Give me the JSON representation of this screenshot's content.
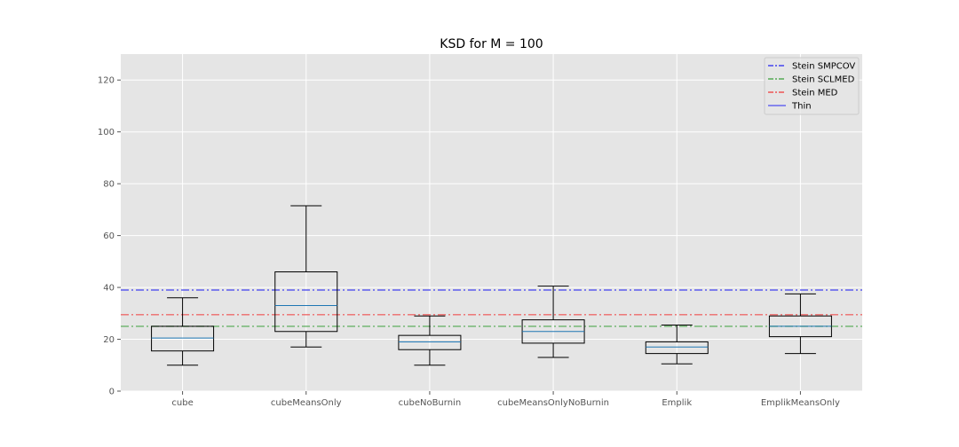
{
  "chart_data": {
    "type": "box",
    "title": "KSD for M = 100",
    "xlabel": "",
    "ylabel": "",
    "ylim": [
      0,
      130
    ],
    "yticks": [
      0,
      20,
      40,
      60,
      80,
      100,
      120
    ],
    "grid": true,
    "legend_position": "top-right",
    "categories": [
      "cube",
      "cubeMeansOnly",
      "cubeNoBurnin",
      "cubeMeansOnlyNoBurnin",
      "Emplik",
      "EmplikMeansOnly"
    ],
    "boxes": [
      {
        "whisker_low": 10,
        "q1": 15.5,
        "median": 20.5,
        "q3": 25,
        "whisker_high": 36
      },
      {
        "whisker_low": 17,
        "q1": 23,
        "median": 33,
        "q3": 46,
        "whisker_high": 71.5
      },
      {
        "whisker_low": 10,
        "q1": 16,
        "median": 19,
        "q3": 21.5,
        "whisker_high": 29
      },
      {
        "whisker_low": 13,
        "q1": 18.5,
        "median": 23,
        "q3": 27.5,
        "whisker_high": 40.5
      },
      {
        "whisker_low": 10.5,
        "q1": 14.5,
        "median": 17,
        "q3": 19,
        "whisker_high": 25.5
      },
      {
        "whisker_low": 14.5,
        "q1": 21,
        "median": 25,
        "q3": 29,
        "whisker_high": 37.5
      }
    ],
    "reference_lines": [
      {
        "name": "Stein SMPCOV",
        "value": 39,
        "color": "#4444ee",
        "style": "dashdot"
      },
      {
        "name": "Stein SCLMED",
        "value": 25,
        "color": "#55aa55",
        "style": "dashdot"
      },
      {
        "name": "Stein MED",
        "value": 29.5,
        "color": "#ee5555",
        "style": "dashdot"
      },
      {
        "name": "Thin",
        "value": null,
        "color": "#6666ee",
        "style": "solid"
      }
    ],
    "colors": {
      "plot_background": "#e5e5e5",
      "grid": "#ffffff",
      "box": "#000000",
      "median": "#1f77b4"
    }
  }
}
